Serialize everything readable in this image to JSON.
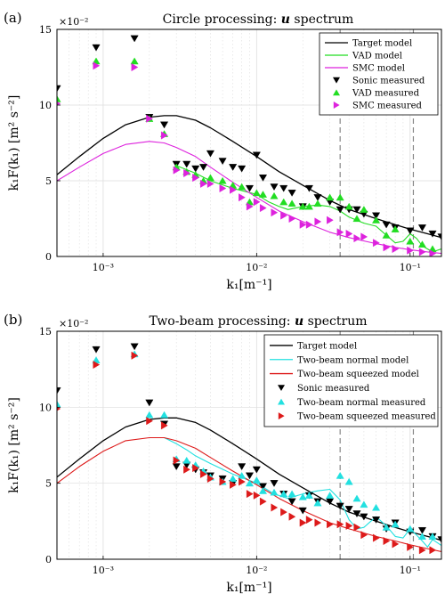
{
  "colors": {
    "target": "#000000",
    "vad": "#22dd22",
    "smc": "#dd22dd",
    "sonic": "#000000",
    "normal": "#22e0e0",
    "squeezed": "#dd1a1a",
    "dashed": "#888888",
    "grid": "#dddddd"
  },
  "chart_data": [
    {
      "type": "line",
      "panel_label": "(a)",
      "title_prefix": "Circle processing: ",
      "title_var": "u",
      "title_suffix": " spectrum",
      "xlabel": "k₁[m⁻¹]",
      "ylabel": "k₁F(k₁) [m² s⁻²]",
      "y_exponent": "×10⁻²",
      "xscale": "log",
      "xlim": [
        0.0005,
        0.16
      ],
      "ylim": [
        0,
        15
      ],
      "yticks": [
        0,
        5,
        10,
        15
      ],
      "xticks": [
        {
          "value": 0.001,
          "label": "10⁻³"
        },
        {
          "value": 0.01,
          "label": "10⁻²"
        },
        {
          "value": 0.1,
          "label": "10⁻¹"
        }
      ],
      "grid": true,
      "vlines": [
        0.035,
        0.105
      ],
      "legend_position": "top-right",
      "series": [
        {
          "name": "Target model",
          "kind": "line",
          "color_key": "target",
          "x": [
            0.0005,
            0.0007,
            0.001,
            0.0014,
            0.002,
            0.0025,
            0.003,
            0.004,
            0.005,
            0.007,
            0.01,
            0.014,
            0.02,
            0.03,
            0.04,
            0.06,
            0.08,
            0.1,
            0.13,
            0.16
          ],
          "y": [
            5.4,
            6.6,
            7.8,
            8.7,
            9.2,
            9.3,
            9.3,
            9.0,
            8.5,
            7.6,
            6.6,
            5.6,
            4.7,
            3.7,
            3.1,
            2.5,
            2.1,
            1.8,
            1.5,
            1.25
          ]
        },
        {
          "name": "VAD model",
          "kind": "line",
          "color_key": "vad",
          "x": [
            0.003,
            0.004,
            0.005,
            0.007,
            0.01,
            0.012,
            0.014,
            0.016,
            0.018,
            0.02,
            0.025,
            0.03,
            0.035,
            0.04,
            0.05,
            0.06,
            0.07,
            0.08,
            0.09,
            0.1,
            0.11,
            0.12,
            0.14,
            0.16
          ],
          "y": [
            6.0,
            5.5,
            5.0,
            4.5,
            4.1,
            3.6,
            3.3,
            3.1,
            3.2,
            3.3,
            3.4,
            3.3,
            3.0,
            2.6,
            2.2,
            2.0,
            1.4,
            0.9,
            1.0,
            1.5,
            1.2,
            0.7,
            0.3,
            0.5
          ]
        },
        {
          "name": "SMC model",
          "kind": "line",
          "color_key": "smc",
          "x": [
            0.0005,
            0.0007,
            0.001,
            0.0014,
            0.002,
            0.0025,
            0.003,
            0.004,
            0.005,
            0.007,
            0.01,
            0.014,
            0.02,
            0.03,
            0.04,
            0.06,
            0.08,
            0.1,
            0.13,
            0.16
          ],
          "y": [
            5.0,
            5.9,
            6.8,
            7.4,
            7.6,
            7.5,
            7.2,
            6.6,
            5.9,
            4.9,
            3.9,
            3.0,
            2.3,
            1.6,
            1.25,
            0.85,
            0.6,
            0.45,
            0.3,
            0.2
          ]
        },
        {
          "name": "Sonic measured",
          "kind": "marker",
          "marker": "triangle-down",
          "color_key": "sonic",
          "x": [
            0.0005,
            0.0009,
            0.0016,
            0.002,
            0.0025,
            0.003,
            0.0035,
            0.004,
            0.0045,
            0.005,
            0.006,
            0.007,
            0.008,
            0.009,
            0.01,
            0.011,
            0.013,
            0.015,
            0.017,
            0.02,
            0.022,
            0.025,
            0.03,
            0.035,
            0.04,
            0.045,
            0.05,
            0.06,
            0.07,
            0.08,
            0.1,
            0.12,
            0.14,
            0.16
          ],
          "y": [
            11.1,
            13.8,
            14.4,
            9.2,
            8.7,
            6.1,
            6.1,
            5.8,
            5.9,
            6.8,
            6.3,
            5.9,
            5.8,
            4.5,
            6.7,
            5.2,
            4.6,
            4.5,
            4.2,
            3.3,
            4.5,
            3.9,
            3.6,
            3.1,
            3.1,
            3.1,
            2.8,
            2.7,
            2.1,
            1.9,
            1.7,
            1.9,
            1.5,
            1.3
          ]
        },
        {
          "name": "VAD measured",
          "kind": "marker",
          "marker": "triangle-up",
          "color_key": "vad",
          "x": [
            0.0005,
            0.0009,
            0.0016,
            0.002,
            0.0025,
            0.003,
            0.0035,
            0.004,
            0.0045,
            0.005,
            0.006,
            0.007,
            0.008,
            0.009,
            0.01,
            0.011,
            0.013,
            0.015,
            0.017,
            0.02,
            0.022,
            0.025,
            0.03,
            0.035,
            0.04,
            0.045,
            0.05,
            0.06,
            0.07,
            0.08,
            0.1,
            0.12,
            0.14
          ],
          "y": [
            10.4,
            12.9,
            12.9,
            9.1,
            8.1,
            5.9,
            5.6,
            5.4,
            5.0,
            5.2,
            5.0,
            4.7,
            4.6,
            3.6,
            4.2,
            4.1,
            4.0,
            3.6,
            3.5,
            3.3,
            3.3,
            3.5,
            3.9,
            3.9,
            3.3,
            2.5,
            3.1,
            2.4,
            1.4,
            1.8,
            1.0,
            0.8,
            0.5
          ]
        },
        {
          "name": "SMC measured",
          "kind": "marker",
          "marker": "triangle-right",
          "color_key": "smc",
          "x": [
            0.0005,
            0.0009,
            0.0016,
            0.002,
            0.0025,
            0.003,
            0.0035,
            0.004,
            0.0045,
            0.005,
            0.006,
            0.007,
            0.008,
            0.009,
            0.01,
            0.011,
            0.013,
            0.015,
            0.017,
            0.02,
            0.022,
            0.025,
            0.03,
            0.035,
            0.04,
            0.045,
            0.05,
            0.06,
            0.07,
            0.08,
            0.1,
            0.12,
            0.14
          ],
          "y": [
            10.1,
            12.6,
            12.5,
            9.1,
            8.0,
            5.7,
            5.5,
            5.2,
            4.8,
            4.8,
            4.5,
            4.4,
            3.9,
            3.3,
            3.6,
            3.2,
            2.9,
            2.7,
            2.5,
            2.1,
            2.1,
            2.3,
            2.4,
            1.6,
            1.5,
            1.2,
            1.3,
            0.9,
            0.6,
            0.5,
            0.4,
            0.3,
            0.2
          ]
        }
      ]
    },
    {
      "type": "line",
      "panel_label": "(b)",
      "title_prefix": "Two-beam processing: ",
      "title_var": "u",
      "title_suffix": " spectrum",
      "xlabel": "k₁[m⁻¹]",
      "ylabel": "k₁F(k₁) [m² s⁻²]",
      "y_exponent": "×10⁻²",
      "xscale": "log",
      "xlim": [
        0.0005,
        0.16
      ],
      "ylim": [
        0,
        15
      ],
      "yticks": [
        0,
        5,
        10,
        15
      ],
      "xticks": [
        {
          "value": 0.001,
          "label": "10⁻³"
        },
        {
          "value": 0.01,
          "label": "10⁻²"
        },
        {
          "value": 0.1,
          "label": "10⁻¹"
        }
      ],
      "grid": true,
      "vlines": [
        0.035,
        0.105
      ],
      "legend_position": "top-right",
      "series": [
        {
          "name": "Target model",
          "kind": "line",
          "color_key": "target",
          "x": [
            0.0005,
            0.0007,
            0.001,
            0.0014,
            0.002,
            0.0025,
            0.003,
            0.004,
            0.005,
            0.007,
            0.01,
            0.014,
            0.02,
            0.03,
            0.04,
            0.06,
            0.08,
            0.1,
            0.13,
            0.16
          ],
          "y": [
            5.4,
            6.6,
            7.8,
            8.7,
            9.2,
            9.3,
            9.3,
            9.0,
            8.5,
            7.6,
            6.6,
            5.6,
            4.7,
            3.7,
            3.1,
            2.5,
            2.1,
            1.8,
            1.5,
            1.25
          ]
        },
        {
          "name": "Two-beam normal model",
          "kind": "line",
          "color_key": "normal",
          "x": [
            0.002,
            0.0025,
            0.003,
            0.0035,
            0.004,
            0.005,
            0.007,
            0.01,
            0.013,
            0.016,
            0.02,
            0.025,
            0.03,
            0.035,
            0.04,
            0.045,
            0.05,
            0.06,
            0.07,
            0.08,
            0.09,
            0.1,
            0.11,
            0.12,
            0.13,
            0.14,
            0.16
          ],
          "y": [
            8.0,
            8.0,
            7.6,
            7.2,
            6.8,
            6.3,
            5.6,
            5.0,
            4.3,
            4.0,
            4.3,
            4.5,
            4.6,
            3.9,
            2.6,
            2.0,
            2.1,
            2.8,
            2.2,
            1.5,
            1.4,
            2.0,
            1.6,
            1.2,
            0.8,
            1.3,
            0.9
          ]
        },
        {
          "name": "Two-beam squeezed model",
          "kind": "line",
          "color_key": "squeezed",
          "x": [
            0.0005,
            0.0007,
            0.001,
            0.0014,
            0.002,
            0.0025,
            0.003,
            0.004,
            0.005,
            0.007,
            0.01,
            0.014,
            0.02,
            0.03,
            0.04,
            0.06,
            0.08,
            0.1,
            0.13,
            0.16
          ],
          "y": [
            5.0,
            6.1,
            7.1,
            7.8,
            8.0,
            8.0,
            7.8,
            7.3,
            6.7,
            5.8,
            4.9,
            4.0,
            3.2,
            2.4,
            2.0,
            1.5,
            1.2,
            0.95,
            0.7,
            0.5
          ]
        },
        {
          "name": "Sonic measured",
          "kind": "marker",
          "marker": "triangle-down",
          "color_key": "sonic",
          "x": [
            0.0005,
            0.0009,
            0.0016,
            0.002,
            0.0025,
            0.003,
            0.0035,
            0.004,
            0.0045,
            0.005,
            0.006,
            0.007,
            0.008,
            0.009,
            0.01,
            0.011,
            0.013,
            0.015,
            0.017,
            0.02,
            0.022,
            0.025,
            0.03,
            0.035,
            0.04,
            0.045,
            0.05,
            0.06,
            0.07,
            0.08,
            0.1,
            0.12,
            0.14,
            0.16
          ],
          "y": [
            11.1,
            13.8,
            14.0,
            10.3,
            8.9,
            6.1,
            6.2,
            5.9,
            5.7,
            5.5,
            5.3,
            5.0,
            6.1,
            5.5,
            5.9,
            4.8,
            5.0,
            4.3,
            3.8,
            3.2,
            4.2,
            3.8,
            3.8,
            3.5,
            3.3,
            3.0,
            2.8,
            2.6,
            2.0,
            2.4,
            1.8,
            1.9,
            1.5,
            1.3
          ]
        },
        {
          "name": "Two-beam normal measured",
          "kind": "marker",
          "marker": "triangle-up",
          "color_key": "normal",
          "x": [
            0.0005,
            0.0009,
            0.0016,
            0.002,
            0.0025,
            0.003,
            0.0035,
            0.004,
            0.0045,
            0.005,
            0.006,
            0.007,
            0.008,
            0.009,
            0.01,
            0.011,
            0.013,
            0.015,
            0.017,
            0.02,
            0.022,
            0.025,
            0.03,
            0.035,
            0.04,
            0.045,
            0.05,
            0.06,
            0.07,
            0.08,
            0.1,
            0.12,
            0.14
          ],
          "y": [
            10.2,
            13.1,
            13.5,
            9.5,
            9.5,
            6.6,
            6.5,
            6.2,
            5.8,
            5.4,
            5.1,
            5.3,
            5.5,
            5.0,
            5.2,
            4.5,
            4.4,
            4.3,
            4.3,
            4.1,
            4.2,
            3.7,
            4.2,
            5.5,
            5.1,
            4.0,
            3.6,
            3.4,
            2.1,
            2.3,
            2.0,
            1.5,
            1.5
          ]
        },
        {
          "name": "Two-beam squeezed measured",
          "kind": "marker",
          "marker": "triangle-right",
          "color_key": "squeezed",
          "x": [
            0.0005,
            0.0009,
            0.0016,
            0.002,
            0.0025,
            0.003,
            0.0035,
            0.004,
            0.0045,
            0.005,
            0.006,
            0.007,
            0.008,
            0.009,
            0.01,
            0.011,
            0.013,
            0.015,
            0.017,
            0.02,
            0.022,
            0.025,
            0.03,
            0.035,
            0.04,
            0.045,
            0.05,
            0.06,
            0.07,
            0.08,
            0.1,
            0.12,
            0.14
          ],
          "y": [
            9.9,
            12.8,
            13.4,
            9.1,
            8.8,
            6.5,
            5.9,
            6.0,
            5.6,
            5.3,
            5.1,
            4.9,
            5.1,
            4.3,
            4.2,
            3.8,
            3.4,
            3.1,
            2.8,
            2.4,
            2.6,
            2.4,
            2.3,
            2.3,
            2.2,
            2.1,
            1.6,
            1.4,
            1.2,
            1.0,
            0.8,
            0.6,
            0.6
          ]
        }
      ]
    }
  ]
}
